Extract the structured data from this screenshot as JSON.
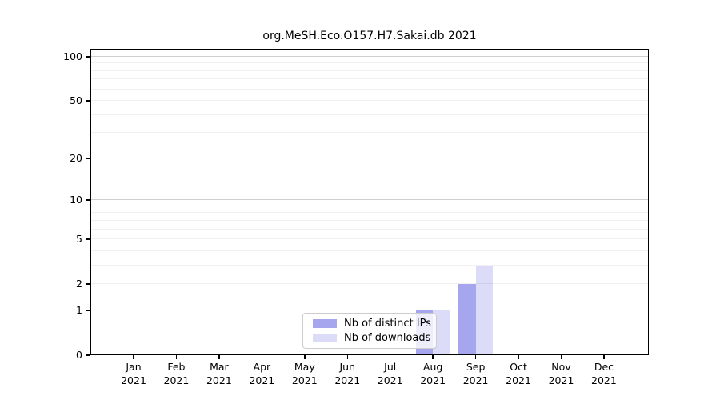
{
  "title": "org.MeSH.Eco.O157.H7.Sakai.db 2021",
  "legend": {
    "items": [
      {
        "label": "Nb of distinct IPs",
        "color": "#a6a6ee"
      },
      {
        "label": "Nb of downloads",
        "color": "#dcdcf8"
      }
    ]
  },
  "colors": {
    "distinct_ips_bar": "#a6a6ee",
    "downloads_bar": "#dcdcf8",
    "axis": "#000000",
    "legend_border": "#cccccc",
    "background": "#ffffff"
  },
  "chart_data": {
    "type": "bar",
    "title": "org.MeSH.Eco.O157.H7.Sakai.db 2021",
    "categories": [
      "Jan 2021",
      "Feb 2021",
      "Mar 2021",
      "Apr 2021",
      "May 2021",
      "Jun 2021",
      "Jul 2021",
      "Aug 2021",
      "Sep 2021",
      "Oct 2021",
      "Nov 2021",
      "Dec 2021"
    ],
    "series": [
      {
        "name": "Nb of distinct IPs",
        "color": "#a6a6ee",
        "values": [
          0,
          0,
          0,
          0,
          0,
          0,
          0,
          1,
          2,
          0,
          0,
          0
        ]
      },
      {
        "name": "Nb of downloads",
        "color": "#dcdcf8",
        "values": [
          0,
          0,
          0,
          0,
          0,
          0,
          0,
          1,
          3,
          0,
          0,
          0
        ]
      }
    ],
    "xlabel": "",
    "ylabel": "",
    "y_scale": "log1p",
    "ylim": [
      0,
      113
    ],
    "y_ticks": [
      0,
      1,
      2,
      5,
      10,
      20,
      50,
      100
    ],
    "gridlines": {
      "major": [
        1,
        10,
        100
      ],
      "minor": [
        2,
        3,
        4,
        5,
        6,
        7,
        8,
        9,
        20,
        30,
        40,
        50,
        60,
        70,
        80,
        90
      ]
    },
    "grid": true,
    "legend_entries": [
      "Nb of distinct IPs",
      "Nb of downloads"
    ],
    "legend_position": "inside lower-center"
  }
}
